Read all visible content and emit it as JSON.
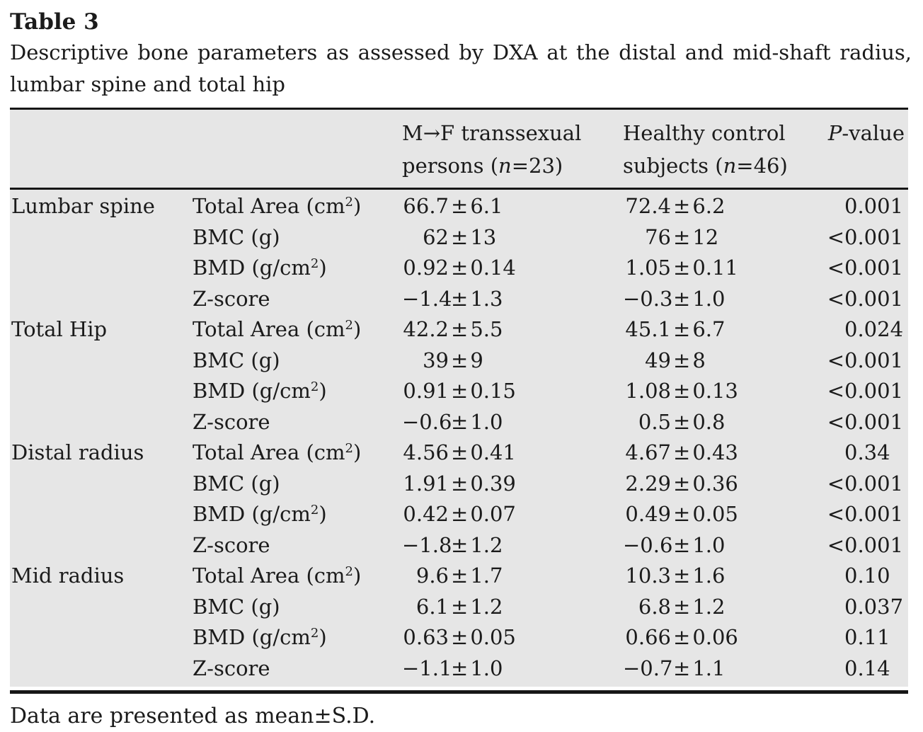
{
  "title": "Table 3",
  "caption": {
    "line1": "Descriptive bone parameters as assessed by DXA at the distal and mid-shaft radius,",
    "line2": "lumbar spine and total hip"
  },
  "symbols": {
    "plus_minus": "±"
  },
  "header": {
    "transsexual": {
      "line1": "M→F transsexual",
      "line2_pre": "persons (",
      "n": "n",
      "line2_post": "=23)"
    },
    "control": {
      "line1": "Healthy control",
      "line2_pre": "subjects (",
      "n": "n",
      "line2_post": "=46)"
    },
    "pvalue": {
      "italic": "P",
      "rest": "-value"
    }
  },
  "groups": [
    {
      "name": "Lumbar spine",
      "rows": [
        {
          "param": {
            "pre": "Total Area (cm",
            "sup": "2",
            "post": ")"
          },
          "ts": {
            "mean": "66.7",
            "sd": "6.1"
          },
          "hc": {
            "mean": "72.4",
            "sd": "6.2"
          },
          "p_lt": "",
          "p": "0.001"
        },
        {
          "param": {
            "pre": "BMC (g)",
            "sup": "",
            "post": ""
          },
          "ts": {
            "mean": "62",
            "sd": "13"
          },
          "hc": {
            "mean": "76",
            "sd": "12"
          },
          "p_lt": "<",
          "p": "0.001"
        },
        {
          "param": {
            "pre": "BMD (g/cm",
            "sup": "2",
            "post": ")"
          },
          "ts": {
            "mean": "0.92",
            "sd": "0.14"
          },
          "hc": {
            "mean": "1.05",
            "sd": "0.11"
          },
          "p_lt": "<",
          "p": "0.001"
        },
        {
          "param": {
            "pre": "Z-score",
            "sup": "",
            "post": ""
          },
          "ts": {
            "mean": "−1.4",
            "sd": "1.3"
          },
          "hc": {
            "mean": "−0.3",
            "sd": "1.0"
          },
          "p_lt": "<",
          "p": "0.001"
        }
      ]
    },
    {
      "name": "Total Hip",
      "rows": [
        {
          "param": {
            "pre": "Total Area (cm",
            "sup": "2",
            "post": ")"
          },
          "ts": {
            "mean": "42.2",
            "sd": "5.5"
          },
          "hc": {
            "mean": "45.1",
            "sd": "6.7"
          },
          "p_lt": "",
          "p": "0.024"
        },
        {
          "param": {
            "pre": "BMC (g)",
            "sup": "",
            "post": ""
          },
          "ts": {
            "mean": "39",
            "sd": "9"
          },
          "hc": {
            "mean": "49",
            "sd": "8"
          },
          "p_lt": "<",
          "p": "0.001"
        },
        {
          "param": {
            "pre": "BMD (g/cm",
            "sup": "2",
            "post": ")"
          },
          "ts": {
            "mean": "0.91",
            "sd": "0.15"
          },
          "hc": {
            "mean": "1.08",
            "sd": "0.13"
          },
          "p_lt": "<",
          "p": "0.001"
        },
        {
          "param": {
            "pre": "Z-score",
            "sup": "",
            "post": ""
          },
          "ts": {
            "mean": "−0.6",
            "sd": "1.0"
          },
          "hc": {
            "mean": "0.5",
            "sd": "0.8"
          },
          "p_lt": "<",
          "p": "0.001"
        }
      ]
    },
    {
      "name": "Distal radius",
      "rows": [
        {
          "param": {
            "pre": "Total Area (cm",
            "sup": "2",
            "post": ")"
          },
          "ts": {
            "mean": "4.56",
            "sd": "0.41"
          },
          "hc": {
            "mean": "4.67",
            "sd": "0.43"
          },
          "p_lt": "",
          "p": "0.34"
        },
        {
          "param": {
            "pre": "BMC (g)",
            "sup": "",
            "post": ""
          },
          "ts": {
            "mean": "1.91",
            "sd": "0.39"
          },
          "hc": {
            "mean": "2.29",
            "sd": "0.36"
          },
          "p_lt": "<",
          "p": "0.001"
        },
        {
          "param": {
            "pre": "BMD (g/cm",
            "sup": "2",
            "post": ")"
          },
          "ts": {
            "mean": "0.42",
            "sd": "0.07"
          },
          "hc": {
            "mean": "0.49",
            "sd": "0.05"
          },
          "p_lt": "<",
          "p": "0.001"
        },
        {
          "param": {
            "pre": "Z-score",
            "sup": "",
            "post": ""
          },
          "ts": {
            "mean": "−1.8",
            "sd": "1.2"
          },
          "hc": {
            "mean": "−0.6",
            "sd": "1.0"
          },
          "p_lt": "<",
          "p": "0.001"
        }
      ]
    },
    {
      "name": "Mid radius",
      "rows": [
        {
          "param": {
            "pre": "Total Area (cm",
            "sup": "2",
            "post": ")"
          },
          "ts": {
            "mean": "9.6",
            "sd": "1.7"
          },
          "hc": {
            "mean": "10.3",
            "sd": "1.6"
          },
          "p_lt": "",
          "p": "0.10"
        },
        {
          "param": {
            "pre": "BMC (g)",
            "sup": "",
            "post": ""
          },
          "ts": {
            "mean": "6.1",
            "sd": "1.2"
          },
          "hc": {
            "mean": "6.8",
            "sd": "1.2"
          },
          "p_lt": "",
          "p": "0.037"
        },
        {
          "param": {
            "pre": "BMD (g/cm",
            "sup": "2",
            "post": ")"
          },
          "ts": {
            "mean": "0.63",
            "sd": "0.05"
          },
          "hc": {
            "mean": "0.66",
            "sd": "0.06"
          },
          "p_lt": "",
          "p": "0.11"
        },
        {
          "param": {
            "pre": "Z-score",
            "sup": "",
            "post": ""
          },
          "ts": {
            "mean": "−1.1",
            "sd": "1.0"
          },
          "hc": {
            "mean": "−0.7",
            "sd": "1.1"
          },
          "p_lt": "",
          "p": "0.14"
        }
      ]
    }
  ],
  "footnote": "Data are presented as mean±S.D.",
  "colors": {
    "table_bg": "#e6e6e6",
    "rule": "#161616",
    "text": "#1b1b1b",
    "page_bg": "#ffffff"
  }
}
